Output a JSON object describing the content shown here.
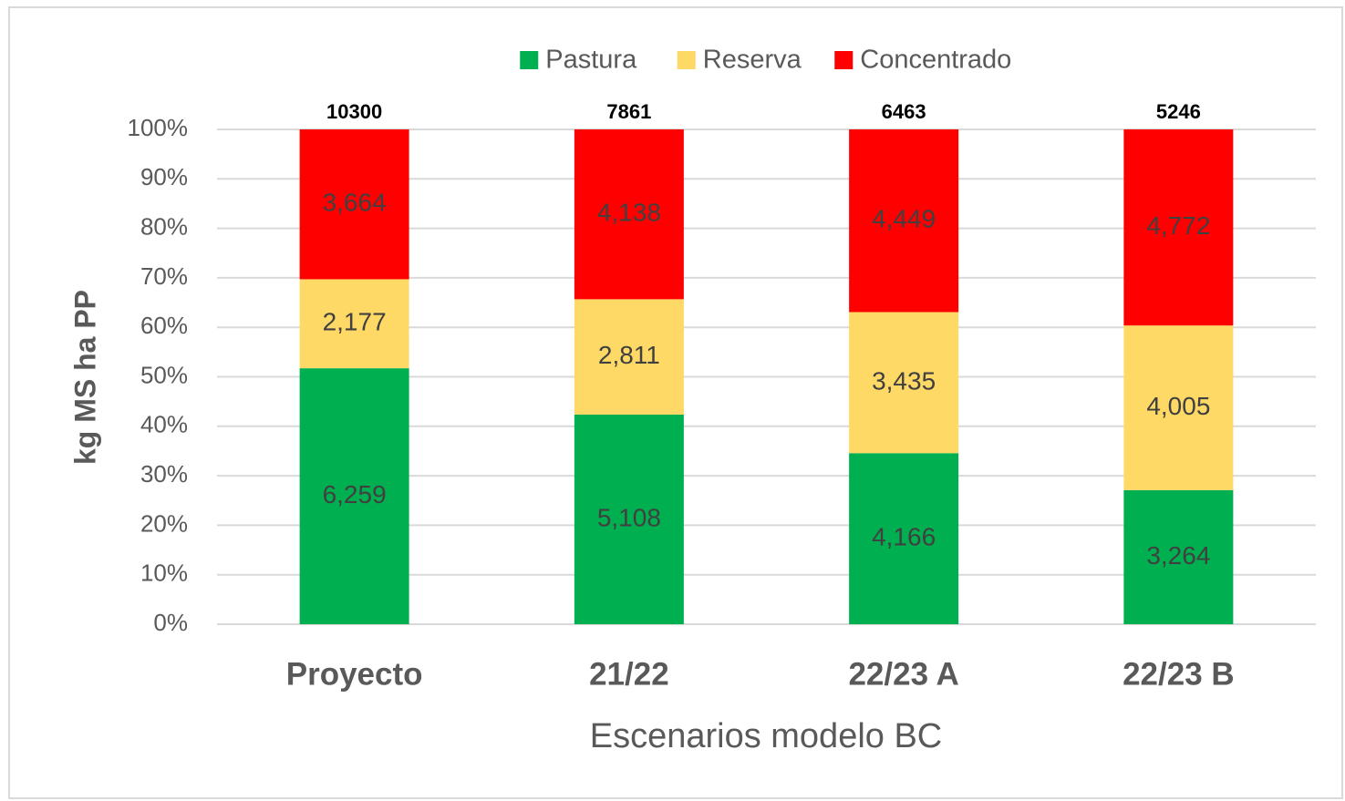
{
  "chart_data": {
    "type": "bar",
    "stacking": "percent",
    "x_label": "Escenarios modelo BC",
    "y_label": "kg MS ha PP",
    "categories": [
      "Proyecto",
      "21/22",
      "22/23 A",
      "22/23 B"
    ],
    "totals": [
      10300,
      7861,
      6463,
      5246
    ],
    "series": [
      {
        "name": "Pastura",
        "color": "#00b050",
        "values": [
          6259,
          5108,
          4166,
          3264
        ],
        "value_labels": [
          "6,259",
          "5,108",
          "4,166",
          "3,264"
        ]
      },
      {
        "name": "Reserva",
        "color": "#ffd966",
        "values": [
          2177,
          2811,
          3435,
          4005
        ],
        "value_labels": [
          "2,177",
          "2,811",
          "3,435",
          "4,005"
        ]
      },
      {
        "name": "Concentrado",
        "color": "#ff0000",
        "values": [
          3664,
          4138,
          4449,
          4772
        ],
        "value_labels": [
          "3,664",
          "4,138",
          "4,449",
          "4,772"
        ]
      }
    ],
    "ylim": [
      0,
      100
    ],
    "yticks": [
      {
        "value": 0,
        "label": "0%"
      },
      {
        "value": 10,
        "label": "10%"
      },
      {
        "value": 20,
        "label": "20%"
      },
      {
        "value": 30,
        "label": "30%"
      },
      {
        "value": 40,
        "label": "40%"
      },
      {
        "value": 50,
        "label": "50%"
      },
      {
        "value": 60,
        "label": "60%"
      },
      {
        "value": 70,
        "label": "70%"
      },
      {
        "value": 80,
        "label": "80%"
      },
      {
        "value": 90,
        "label": "90%"
      },
      {
        "value": 100,
        "label": "100%"
      }
    ],
    "grid": true,
    "legend": "top"
  }
}
